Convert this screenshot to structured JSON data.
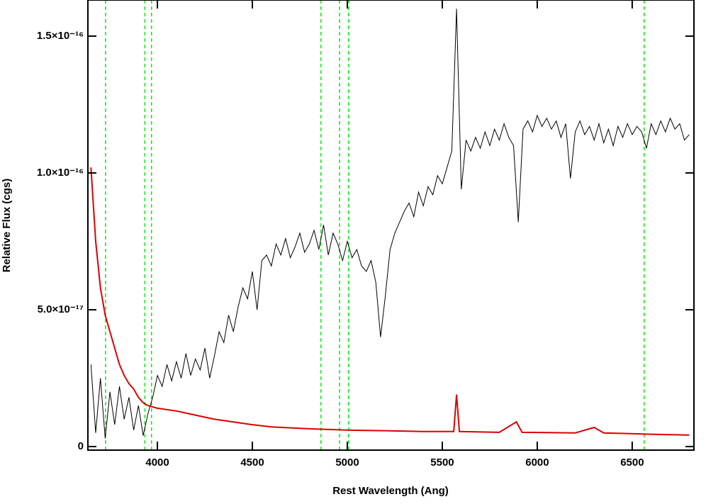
{
  "chart_data": {
    "type": "line",
    "xlabel": "Rest Wavelength (Ang)",
    "ylabel": "Relative Flux (cgs)",
    "xlim": [
      3634,
      6825
    ],
    "ylim": [
      -1.3e-18,
      1.632e-16
    ],
    "xticks": [
      4000,
      4500,
      5000,
      5500,
      6000,
      6500
    ],
    "yticks": [
      0,
      {
        "value": 5e-17,
        "label": "5.0×10⁻¹⁷"
      },
      {
        "value": 1e-16,
        "label": "1.0×10⁻¹⁶"
      },
      {
        "value": 1.5e-16,
        "label": "1.5×10⁻¹⁶"
      }
    ],
    "vlines": {
      "color": "#00ee00",
      "x": [
        3727,
        3934,
        3969,
        4861,
        4959,
        5007,
        6563
      ]
    },
    "series": [
      {
        "color": "#000000",
        "x": [
          3650,
          3675,
          3700,
          3725,
          3750,
          3775,
          3800,
          3825,
          3850,
          3875,
          3900,
          3925,
          3950,
          3975,
          4000,
          4025,
          4050,
          4075,
          4100,
          4125,
          4150,
          4175,
          4200,
          4225,
          4250,
          4275,
          4300,
          4325,
          4350,
          4375,
          4400,
          4425,
          4450,
          4475,
          4500,
          4525,
          4550,
          4575,
          4600,
          4625,
          4650,
          4675,
          4700,
          4725,
          4750,
          4775,
          4800,
          4825,
          4850,
          4875,
          4900,
          4925,
          4950,
          4975,
          5000,
          5025,
          5050,
          5075,
          5100,
          5125,
          5150,
          5175,
          5200,
          5225,
          5250,
          5275,
          5300,
          5325,
          5350,
          5375,
          5400,
          5425,
          5450,
          5475,
          5500,
          5525,
          5550,
          5575,
          5600,
          5625,
          5650,
          5675,
          5700,
          5725,
          5750,
          5775,
          5800,
          5825,
          5850,
          5875,
          5900,
          5925,
          5950,
          5975,
          6000,
          6025,
          6050,
          6075,
          6100,
          6125,
          6150,
          6175,
          6200,
          6225,
          6250,
          6275,
          6300,
          6325,
          6350,
          6375,
          6400,
          6425,
          6450,
          6475,
          6500,
          6525,
          6550,
          6575,
          6600,
          6625,
          6650,
          6675,
          6700,
          6725,
          6750,
          6775,
          6800
        ],
        "values": [
          3e-17,
          5e-18,
          2.5e-17,
          3e-18,
          2e-17,
          8e-18,
          2.2e-17,
          1e-17,
          1.8e-17,
          6e-18,
          1.5e-17,
          4e-18,
          1.2e-17,
          1.8e-17,
          2.6e-17,
          2.2e-17,
          3e-17,
          2.4e-17,
          3.1e-17,
          2.5e-17,
          3.4e-17,
          2.6e-17,
          3.2e-17,
          2.8e-17,
          3.6e-17,
          2.5e-17,
          3.3e-17,
          4.2e-17,
          3.8e-17,
          4.8e-17,
          4.2e-17,
          5.1e-17,
          5.8e-17,
          5.4e-17,
          6.4e-17,
          5e-17,
          6.8e-17,
          7e-17,
          6.6e-17,
          7.4e-17,
          7e-17,
          7.6e-17,
          6.9e-17,
          7.3e-17,
          7.8e-17,
          7.1e-17,
          7.4e-17,
          7.9e-17,
          7.2e-17,
          8.1e-17,
          7e-17,
          7.8e-17,
          7.4e-17,
          6.8e-17,
          7.5e-17,
          6.9e-17,
          7.2e-17,
          6.6e-17,
          6.4e-17,
          6.8e-17,
          6e-17,
          4e-17,
          5.5e-17,
          7.2e-17,
          7.8e-17,
          8.2e-17,
          8.6e-17,
          8.9e-17,
          8.4e-17,
          9.3e-17,
          8.8e-17,
          9.5e-17,
          9.2e-17,
          9.9e-17,
          9.6e-17,
          1.02e-16,
          1.08e-16,
          1.6e-16,
          9.4e-17,
          1.12e-16,
          1.08e-16,
          1.13e-16,
          1.09e-16,
          1.15e-16,
          1.1e-16,
          1.16e-16,
          1.12e-16,
          1.18e-16,
          1.13e-16,
          1.1e-16,
          8.2e-17,
          1.16e-16,
          1.19e-16,
          1.15e-16,
          1.21e-16,
          1.17e-16,
          1.2e-16,
          1.16e-16,
          1.19e-16,
          1.13e-16,
          1.18e-16,
          9.8e-17,
          1.15e-16,
          1.19e-16,
          1.14e-16,
          1.17e-16,
          1.12e-16,
          1.18e-16,
          1.11e-16,
          1.16e-16,
          1.1e-16,
          1.17e-16,
          1.13e-16,
          1.18e-16,
          1.14e-16,
          1.17e-16,
          1.15e-16,
          1.09e-16,
          1.18e-16,
          1.14e-16,
          1.19e-16,
          1.15e-16,
          1.2e-16,
          1.16e-16,
          1.18e-16,
          1.12e-16,
          1.14e-16
        ]
      },
      {
        "color": "#dd0000",
        "x": [
          3650,
          3675,
          3700,
          3725,
          3750,
          3775,
          3800,
          3825,
          3850,
          3875,
          3900,
          3925,
          3950,
          3975,
          4000,
          4100,
          4200,
          4300,
          4400,
          4500,
          4600,
          4800,
          5000,
          5200,
          5400,
          5560,
          5575,
          5590,
          5800,
          5890,
          5920,
          6200,
          6300,
          6350,
          6600,
          6800
        ],
        "values": [
          1.02e-16,
          7.5e-17,
          5.8e-17,
          4.8e-17,
          4.2e-17,
          3.6e-17,
          3e-17,
          2.6e-17,
          2.3e-17,
          2.1e-17,
          1.8e-17,
          1.6e-17,
          1.5e-17,
          1.45e-17,
          1.4e-17,
          1.3e-17,
          1.15e-17,
          1e-17,
          9e-18,
          8e-18,
          7.2e-18,
          6.5e-18,
          6e-18,
          5.8e-18,
          5.5e-18,
          5.5e-18,
          1.9e-17,
          5.5e-18,
          5.2e-18,
          9e-18,
          5.2e-18,
          5e-18,
          7e-18,
          5e-18,
          4.5e-18,
          4.2e-18
        ]
      }
    ]
  }
}
